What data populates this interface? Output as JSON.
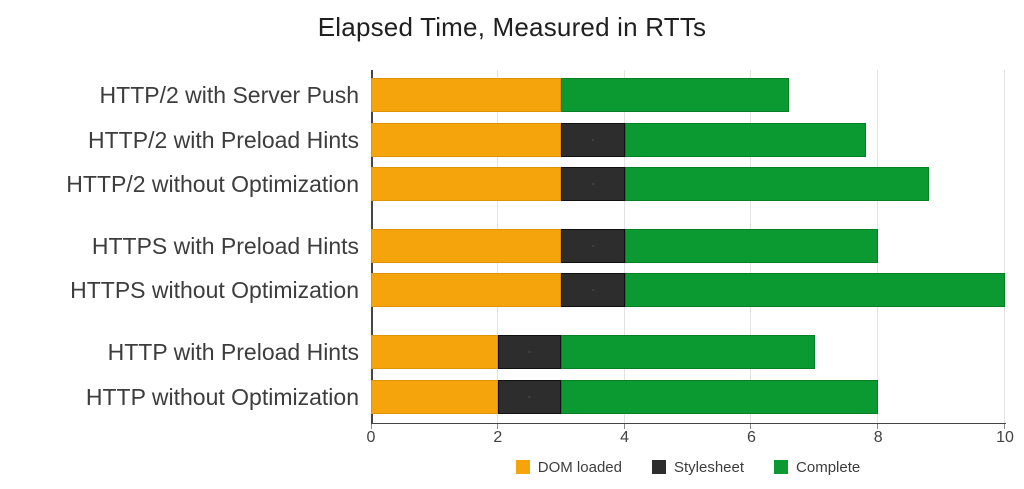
{
  "chart_data": {
    "type": "bar",
    "orientation": "horizontal",
    "stacked": true,
    "title": "Elapsed Time, Measured in RTTs",
    "categories": [
      "HTTP/2 with Server Push",
      "HTTP/2 with Preload Hints",
      "HTTP/2 without Optimization",
      "HTTPS with Preload Hints",
      "HTTPS without Optimization",
      "HTTP with Preload Hints",
      "HTTP without Optimization"
    ],
    "row_groups": [
      [
        0,
        1,
        2
      ],
      [
        3,
        4
      ],
      [
        5,
        6
      ]
    ],
    "series": [
      {
        "name": "DOM loaded",
        "color": "#F5A50B",
        "values": [
          3,
          3,
          3,
          3,
          3,
          2,
          2
        ]
      },
      {
        "name": "Stylesheet",
        "color": "#2D2D2D",
        "values": [
          0,
          1,
          1,
          1,
          1,
          1,
          1
        ]
      },
      {
        "name": "Complete",
        "color": "#0A9A31",
        "values": [
          3.6,
          3.8,
          4.8,
          4,
          6,
          4,
          5
        ]
      }
    ],
    "totals": [
      6.6,
      7.8,
      8.8,
      8,
      10,
      7,
      8
    ],
    "x_ticks": [
      0,
      2,
      4,
      6,
      8,
      10
    ],
    "xlim": [
      0,
      10
    ],
    "xlabel": "",
    "ylabel": "",
    "grid": true,
    "legend_position": "bottom"
  }
}
